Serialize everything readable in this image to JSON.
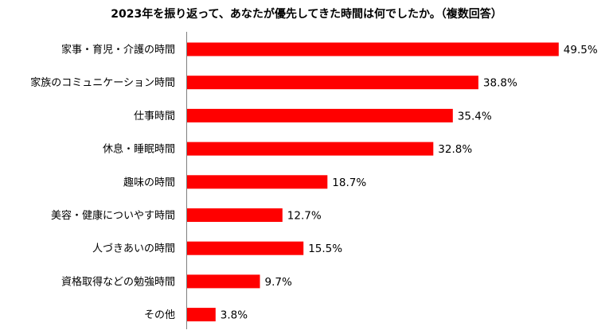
{
  "chart_data": {
    "type": "bar",
    "orientation": "horizontal",
    "title": "2023年を振り返って、あなたが優先してきた時間は何でしたか。（複数回答）",
    "categories": [
      "家事・育児・介護の時間",
      "家族のコミュニケーション時間",
      "仕事時間",
      "休息・睡眠時間",
      "趣味の時間",
      "美容・健康についやす時間",
      "人づきあいの時間",
      "資格取得などの勉強時間",
      "その他"
    ],
    "values": [
      49.5,
      38.8,
      35.4,
      32.8,
      18.7,
      12.7,
      15.5,
      9.7,
      3.8
    ],
    "value_labels": [
      "49.5%",
      "38.8%",
      "35.4%",
      "32.8%",
      "18.7%",
      "12.7%",
      "15.5%",
      "9.7%",
      "3.8%"
    ],
    "unit": "%",
    "xlim": [
      0,
      50
    ],
    "bar_color": "#ff0000",
    "axis_color": "#7f7f7f",
    "grid": false,
    "legend": "none"
  }
}
